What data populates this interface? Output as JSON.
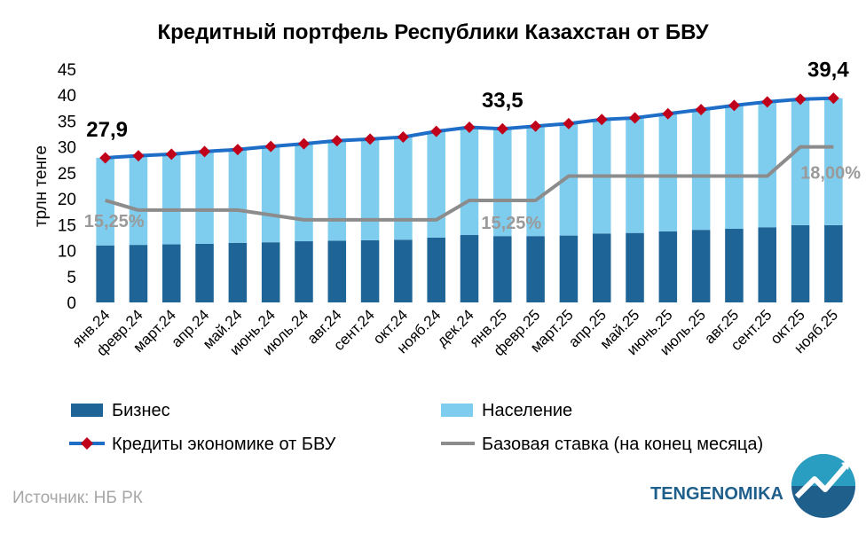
{
  "chart_data": {
    "type": "bar",
    "title": "Кредитный портфель Республики Казахстан от БВУ",
    "ylabel": "трлн тенге",
    "xlabel": "",
    "ylim": [
      0,
      45
    ],
    "yticks": [
      0,
      5,
      10,
      15,
      20,
      25,
      30,
      35,
      40,
      45
    ],
    "grid": false,
    "legend_position": "bottom",
    "categories": [
      "янв.24",
      "февр.24",
      "март.24",
      "апр.24",
      "май.24",
      "июнь.24",
      "июль.24",
      "авг.24",
      "сент.24",
      "окт.24",
      "нояб.24",
      "дек.24",
      "янв.25",
      "февр.25",
      "март.25",
      "апр.25",
      "май.25",
      "июнь.25",
      "июль.25",
      "авг.25",
      "сент.25",
      "окт.25",
      "нояб.25"
    ],
    "series": [
      {
        "name": "Бизнес",
        "type": "stacked-bar",
        "color": "#1e6496",
        "values": [
          11.0,
          11.1,
          11.2,
          11.3,
          11.5,
          11.6,
          11.8,
          11.9,
          12.0,
          12.1,
          12.5,
          13.0,
          12.8,
          12.8,
          12.9,
          13.3,
          13.4,
          13.7,
          14.0,
          14.2,
          14.5,
          14.9,
          14.9
        ]
      },
      {
        "name": "Население",
        "type": "stacked-bar",
        "color": "#7fcdee",
        "values": [
          16.9,
          17.2,
          17.4,
          17.8,
          18.0,
          18.5,
          18.8,
          19.3,
          19.5,
          19.8,
          20.5,
          20.8,
          20.7,
          21.2,
          21.6,
          22.0,
          22.2,
          22.7,
          23.2,
          23.8,
          24.2,
          24.3,
          24.5
        ]
      },
      {
        "name": "Кредиты экономике от БВУ",
        "type": "line",
        "color": "#1e6ec8",
        "marker_color": "#c0001a",
        "values": [
          27.9,
          28.3,
          28.6,
          29.1,
          29.5,
          30.1,
          30.6,
          31.2,
          31.5,
          31.9,
          33.0,
          33.8,
          33.5,
          34.0,
          34.5,
          35.3,
          35.6,
          36.4,
          37.2,
          38.0,
          38.7,
          39.2,
          39.4
        ]
      },
      {
        "name": "Базовая ставка (на конец месяца)",
        "type": "line",
        "color": "#8c8c8c",
        "values": [
          15.25,
          14.75,
          14.75,
          14.75,
          14.75,
          14.5,
          14.25,
          14.25,
          14.25,
          14.25,
          14.25,
          15.25,
          15.25,
          15.25,
          16.5,
          16.5,
          16.5,
          16.5,
          16.5,
          16.5,
          16.5,
          18.0,
          18.0
        ]
      }
    ],
    "rate_axis": {
      "min": 10.0,
      "max": 22.0
    },
    "annotations": [
      {
        "text": "27,9",
        "index": 0,
        "series": "total"
      },
      {
        "text": "33,5",
        "index": 12,
        "series": "total"
      },
      {
        "text": "39,4",
        "index": 22,
        "series": "total"
      },
      {
        "text": "15,25%",
        "index": 0,
        "series": "rate"
      },
      {
        "text": "15,25%",
        "index": 12,
        "series": "rate"
      },
      {
        "text": "18,00%",
        "index": 22,
        "series": "rate"
      }
    ]
  },
  "footer": {
    "source": "Источник: НБ РК",
    "brand": "TENGENOMIKA"
  }
}
